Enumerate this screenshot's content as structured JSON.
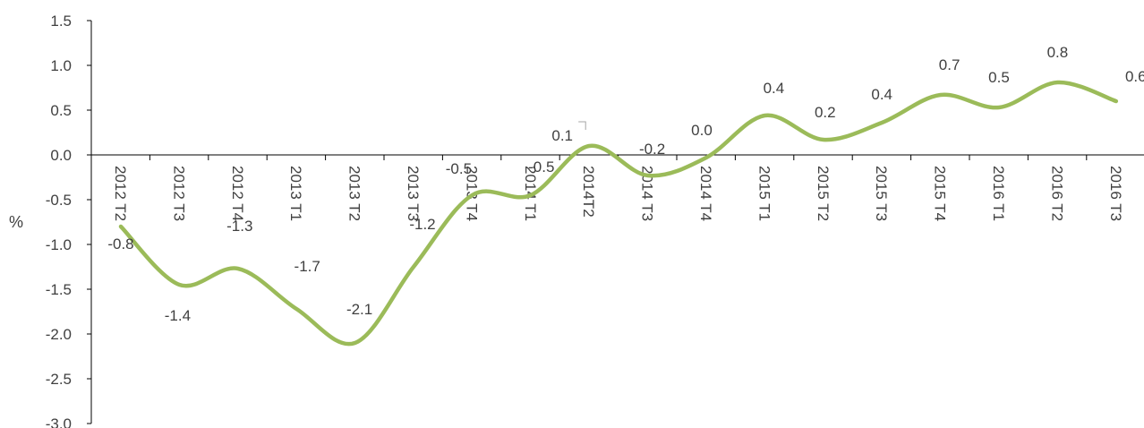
{
  "chart_data": {
    "type": "line",
    "smooth": true,
    "title": "",
    "xlabel": "",
    "ylabel": "%",
    "ylim": [
      -3.0,
      1.5
    ],
    "ytick_step": 0.5,
    "ytick_labels": [
      "1.5",
      "1.0",
      "0.5",
      "0.0",
      "-0.5",
      "-1.0",
      "-1.5",
      "-2.0",
      "-2.5",
      "-3.0"
    ],
    "grid": false,
    "legend": "none",
    "line_color": "#9bbb59",
    "axis_color": "#000000",
    "text_color": "#404040",
    "categories": [
      "2012 T2",
      "2012 T3",
      "2012 T4",
      "2013 T1",
      "2013 T2",
      "2013 T3",
      "2013 T4",
      "2014 T1",
      "2014T2",
      "2014 T3",
      "2014 T4",
      "2015 T1",
      "2015 T2",
      "2015 T3",
      "2015 T4",
      "2016 T1",
      "2016 T2",
      "2016 T3"
    ],
    "series": [
      {
        "values": [
          -0.8,
          -1.45,
          -1.27,
          -1.72,
          -2.1,
          -1.25,
          -0.45,
          -0.45,
          0.1,
          -0.23,
          -0.03,
          0.44,
          0.17,
          0.36,
          0.67,
          0.53,
          0.81,
          0.6
        ],
        "labels": [
          "-0.8",
          "-1.4",
          "-1.3",
          "-1.7",
          "-2.1",
          "-1.2",
          "-0.5",
          "-0.5",
          "0.1",
          "-0.2",
          "0.0",
          "0.4",
          "0.2",
          "0.4",
          "0.7",
          "0.5",
          "0.8",
          "0.6"
        ]
      }
    ]
  }
}
